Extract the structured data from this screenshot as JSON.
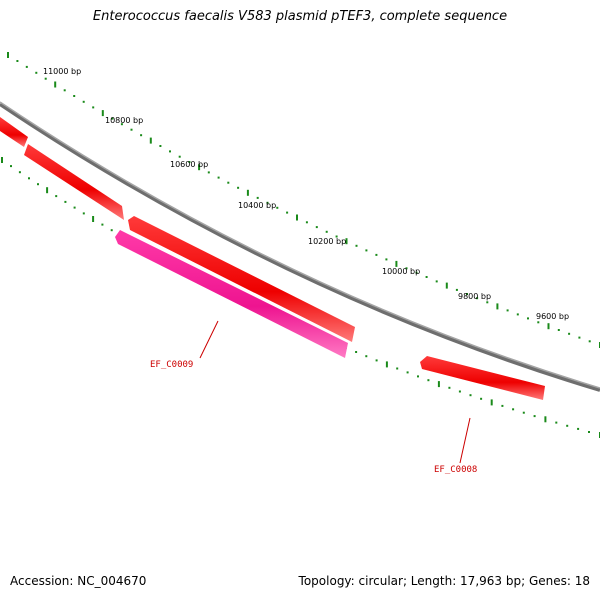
{
  "title": "Enterococcus faecalis V583 plasmid pTEF3, complete sequence",
  "accession": "Accession: NC_004670",
  "summary": "Topology: circular; Length: 17,963 bp; Genes: 18",
  "scale_labels": [
    "11000 bp",
    "10800 bp",
    "10600 bp",
    "10400 bp",
    "10200 bp",
    "10000 bp",
    "9800 bp",
    "9600 bp"
  ],
  "gene_labels": [
    "EF_C0009",
    "EF_C0008"
  ],
  "colors": {
    "backbone": "#8a8a8a",
    "gene_forward": "#ff0000",
    "gene_reverse": "#ff2299",
    "tick": "#1a8a1a",
    "label_red": "#cc0000"
  }
}
